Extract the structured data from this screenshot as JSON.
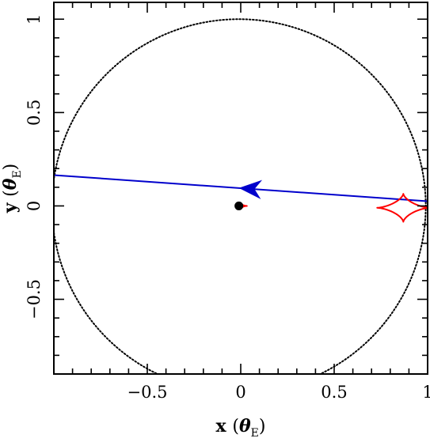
{
  "chart_data": {
    "type": "scatter",
    "title": "",
    "xlabel": "x (θE)",
    "ylabel": "y (θE)",
    "xlabel_parts": {
      "main": "x",
      "theta": "θ",
      "sub": "E"
    },
    "ylabel_parts": {
      "main": "y",
      "theta": "θ",
      "sub": "E"
    },
    "xlim": [
      -1.0,
      1.0
    ],
    "ylim": [
      -0.9,
      1.09
    ],
    "x_major_ticks": [
      -0.5,
      0,
      0.5,
      1
    ],
    "x_tick_labels": [
      "−0.5",
      "0",
      "0.5",
      "1"
    ],
    "y_major_ticks": [
      -0.5,
      0,
      0.5,
      1
    ],
    "y_tick_labels": [
      "−0.5",
      "0",
      "0.5",
      "1"
    ],
    "minor_tick_step": 0.1,
    "grid": false,
    "einstein_ring": {
      "center": [
        -0.01,
        0.0
      ],
      "radius": 1.0,
      "style": "dotted",
      "color": "#000000"
    },
    "source_trajectory": {
      "color": "#0000cc",
      "points": [
        [
          -1.0,
          0.165
        ],
        [
          1.0,
          0.025
        ]
      ],
      "arrow_at": [
        0.05,
        0.092
      ],
      "direction": "left"
    },
    "caustics": [
      {
        "name": "planetary caustic",
        "color": "#ff0000",
        "center": [
          0.87,
          -0.01
        ],
        "half_width": 0.14,
        "half_height": 0.075
      },
      {
        "name": "central caustic",
        "color": "#ff0000",
        "center": [
          0.008,
          0.0
        ],
        "half_width": 0.025,
        "half_height": 0.008
      }
    ],
    "lens": {
      "x": -0.01,
      "y": 0.0,
      "color": "#000000"
    }
  }
}
